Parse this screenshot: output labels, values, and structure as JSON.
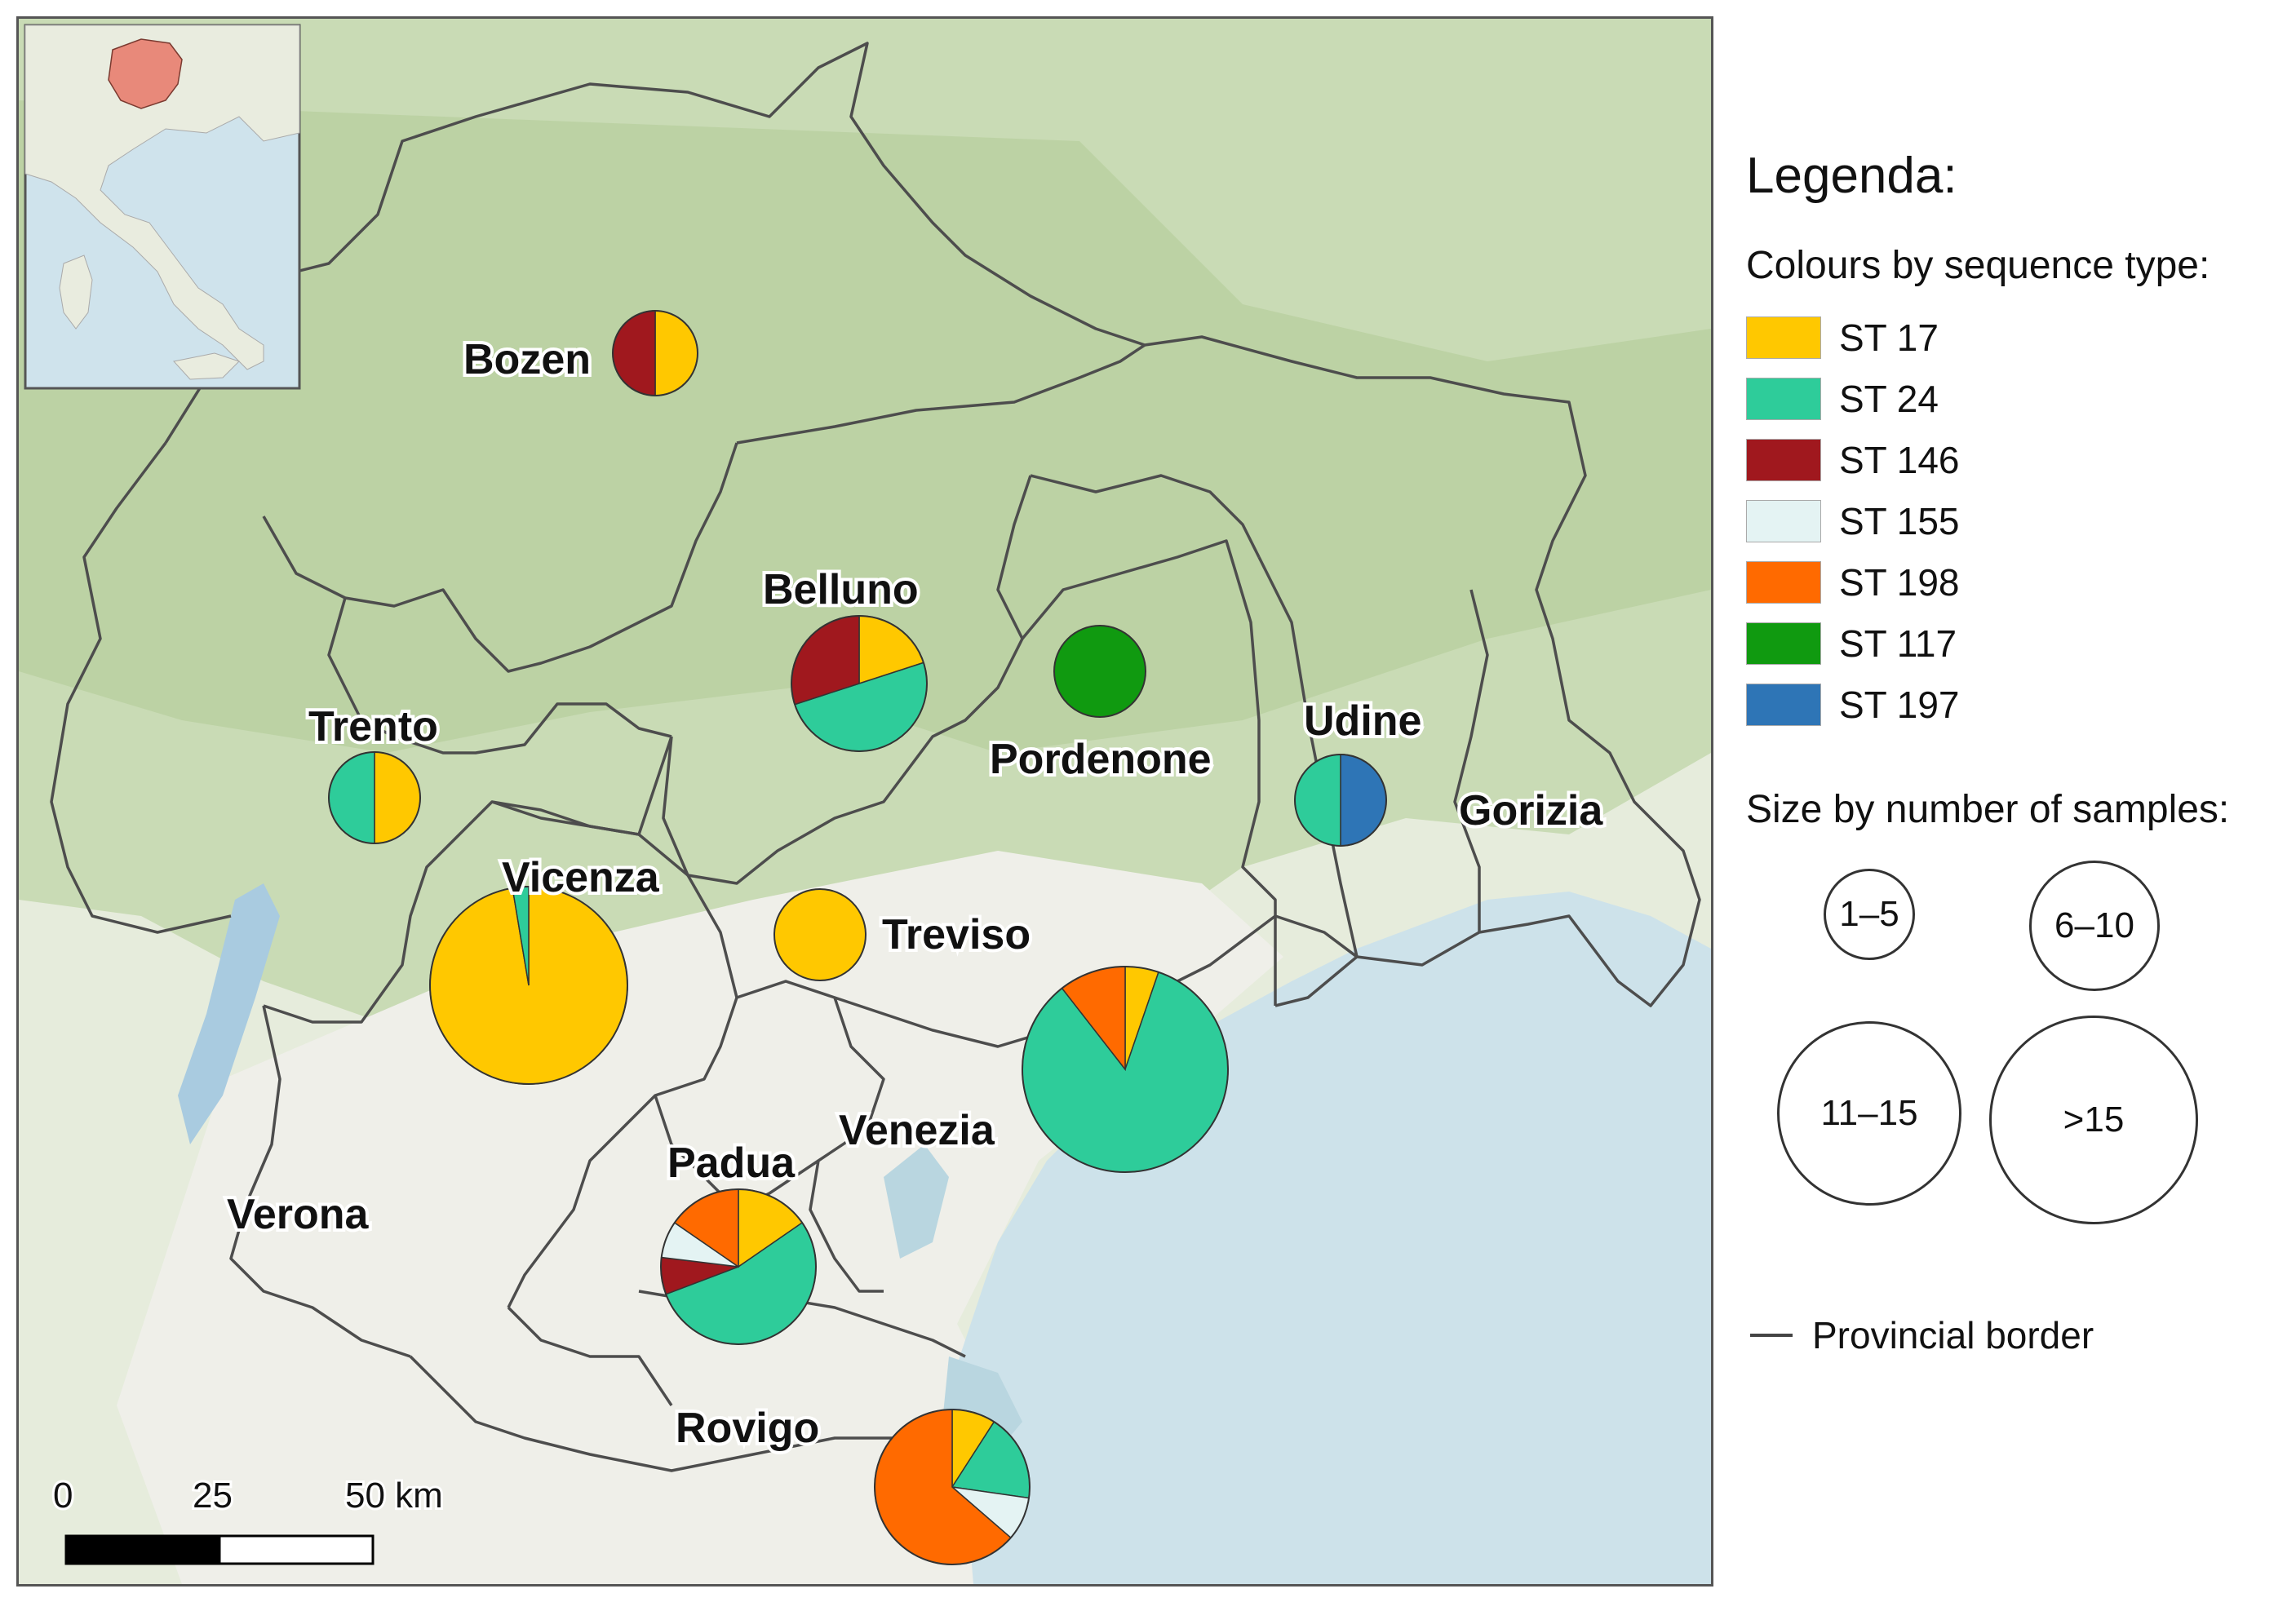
{
  "legend": {
    "title": "Legenda:",
    "colours_title": "Colours by sequence type:",
    "sequence_types": [
      {
        "label": "ST 17",
        "color": "#FFC800"
      },
      {
        "label": "ST 24",
        "color": "#2ECC9A"
      },
      {
        "label": "ST 146",
        "color": "#A0181E"
      },
      {
        "label": "ST 155",
        "color": "#E4F3F3"
      },
      {
        "label": "ST 198",
        "color": "#FF6A00"
      },
      {
        "label": "ST 117",
        "color": "#109A10"
      },
      {
        "label": "ST 197",
        "color": "#2E75B6"
      }
    ],
    "size_title": "Size by number of samples:",
    "size_classes": [
      "1–5",
      "6–10",
      "11–15",
      ">15"
    ],
    "border_label": "Provincial border"
  },
  "map": {
    "province_labels": [
      "Bozen",
      "Belluno",
      "Trento",
      "Pordenone",
      "Udine",
      "Gorizia",
      "Vicenza",
      "Treviso",
      "Venezia",
      "Padua",
      "Verona",
      "Rovigo"
    ],
    "pies": [
      {
        "name": "Bozen",
        "size_class": "6–10",
        "shares": [
          {
            "st": "ST 17",
            "value": 1
          },
          {
            "st": "ST 146",
            "value": 1
          }
        ]
      },
      {
        "name": "Belluno",
        "size_class": "11–15",
        "shares": [
          {
            "st": "ST 17",
            "value": 2
          },
          {
            "st": "ST 24",
            "value": 5
          },
          {
            "st": "ST 146",
            "value": 3
          }
        ]
      },
      {
        "name": "Trento",
        "size_class": "6–10",
        "shares": [
          {
            "st": "ST 17",
            "value": 1
          },
          {
            "st": "ST 24",
            "value": 1
          }
        ]
      },
      {
        "name": "Pordenone",
        "size_class": "6–10",
        "shares": [
          {
            "st": "ST 117",
            "value": 1
          }
        ]
      },
      {
        "name": "Udine",
        "size_class": "6–10",
        "shares": [
          {
            "st": "ST 197",
            "value": 1
          },
          {
            "st": "ST 24",
            "value": 1
          }
        ]
      },
      {
        "name": "Vicenza",
        "size_class": ">15",
        "shares": [
          {
            "st": "ST 17",
            "value": 37
          },
          {
            "st": "ST 24",
            "value": 1
          }
        ]
      },
      {
        "name": "Treviso",
        "size_class": "6–10",
        "shares": [
          {
            "st": "ST 17",
            "value": 1
          }
        ]
      },
      {
        "name": "Venezia",
        "size_class": ">15",
        "shares": [
          {
            "st": "ST 17",
            "value": 1
          },
          {
            "st": "ST 24",
            "value": 16
          },
          {
            "st": "ST 198",
            "value": 2
          }
        ]
      },
      {
        "name": "Padua",
        "size_class": "11–15",
        "shares": [
          {
            "st": "ST 17",
            "value": 2
          },
          {
            "st": "ST 24",
            "value": 7
          },
          {
            "st": "ST 146",
            "value": 1
          },
          {
            "st": "ST 155",
            "value": 1
          },
          {
            "st": "ST 198",
            "value": 2
          }
        ]
      },
      {
        "name": "Rovigo",
        "size_class": "11–15",
        "shares": [
          {
            "st": "ST 17",
            "value": 1
          },
          {
            "st": "ST 24",
            "value": 2
          },
          {
            "st": "ST 155",
            "value": 1
          },
          {
            "st": "ST 198",
            "value": 7
          }
        ]
      }
    ],
    "scale_bar": {
      "labels": [
        "0",
        "25",
        "50 km"
      ]
    },
    "colors": {
      "land": "#dbe6cf",
      "mountain": "#bcd3a6",
      "plain": "#eeeeea",
      "sea": "#cfe3ec",
      "border": "#4d4d4d",
      "inset_highlight": "#e8897a"
    }
  }
}
